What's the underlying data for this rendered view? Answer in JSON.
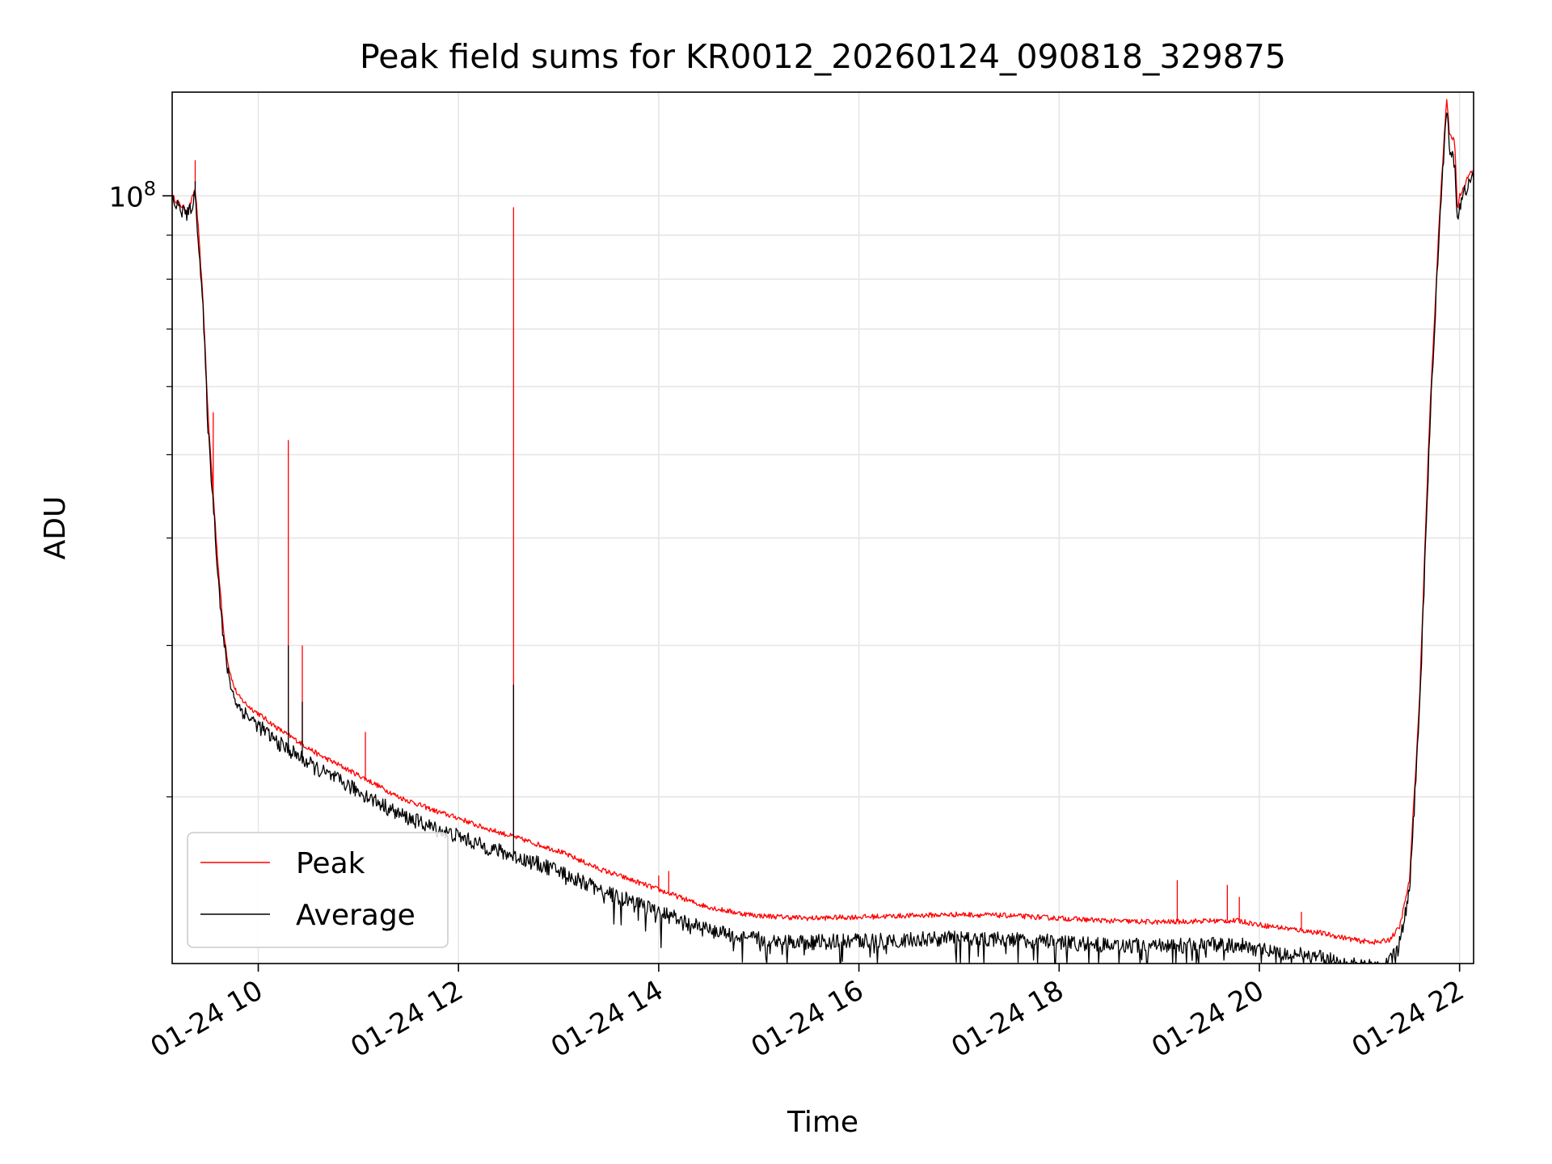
{
  "chart_data": {
    "type": "line",
    "title": "Peak field sums for KR0012_20260124_090818_329875",
    "xlabel": "Time",
    "ylabel": "ADU",
    "yscale": "log",
    "x_unit": "hours (2026-01-24)",
    "xlim": [
      9.14,
      22.14
    ],
    "ylim": [
      12800000.0,
      132000000.0
    ],
    "x_ticks": [
      10,
      12,
      14,
      16,
      18,
      20,
      22
    ],
    "x_tick_labels": [
      "01-24 10",
      "01-24 12",
      "01-24 14",
      "01-24 16",
      "01-24 18",
      "01-24 20",
      "01-24 22"
    ],
    "y_major_ticks": [
      100000000
    ],
    "y_major_tick_base": "10",
    "y_major_tick_exp": "8",
    "y_minor_ticks": [
      20000000,
      30000000,
      40000000,
      50000000,
      60000000,
      70000000,
      80000000,
      90000000
    ],
    "grid": true,
    "legend": {
      "location": "lower-left",
      "entries": [
        "Peak",
        "Average"
      ]
    },
    "colors": {
      "peak": "#ff0000",
      "average": "#000000",
      "grid": "#e6e6e6"
    },
    "series": [
      {
        "name": "Peak",
        "x": [
          9.14,
          9.2,
          9.3,
          9.37,
          9.4,
          9.45,
          9.5,
          9.55,
          9.6,
          9.65,
          9.7,
          9.75,
          9.8,
          9.9,
          10.0,
          10.2,
          10.4,
          10.6,
          10.8,
          11.0,
          11.2,
          11.4,
          11.6,
          11.8,
          12.0,
          12.2,
          12.4,
          12.6,
          12.8,
          13.0,
          13.2,
          13.4,
          13.6,
          13.8,
          14.0,
          14.2,
          14.4,
          14.6,
          14.8,
          15.0,
          15.5,
          16.0,
          16.5,
          17.0,
          17.5,
          18.0,
          18.5,
          19.0,
          19.5,
          19.8,
          20.0,
          20.4,
          20.6,
          20.8,
          21.0,
          21.2,
          21.3,
          21.4,
          21.5,
          21.6,
          21.7,
          21.8,
          21.87,
          21.9,
          21.95,
          21.98,
          22.0,
          22.05,
          22.1,
          22.14
        ],
        "y": [
          100000000,
          98000000,
          96000000,
          102000000,
          92000000,
          75000000,
          55000000,
          45000000,
          37000000,
          31500000,
          28500000,
          27000000,
          26200000,
          25500000,
          25000000,
          24000000,
          23200000,
          22400000,
          21800000,
          21200000,
          20600000,
          20000000,
          19600000,
          19200000,
          18900000,
          18500000,
          18200000,
          17900000,
          17600000,
          17300000,
          16900000,
          16500000,
          16200000,
          15900000,
          15600000,
          15300000,
          15000000,
          14800000,
          14650000,
          14550000,
          14450000,
          14500000,
          14550000,
          14600000,
          14550000,
          14450000,
          14350000,
          14300000,
          14350000,
          14350000,
          14200000,
          14000000,
          13900000,
          13750000,
          13600000,
          13550000,
          13650000,
          14100000,
          16000000,
          26000000,
          55000000,
          95000000,
          130000000,
          118000000,
          116000000,
          96000000,
          100000000,
          103000000,
          106000000,
          107000000
        ],
        "spikes": [
          [
            9.37,
            110000000
          ],
          [
            9.55,
            56000000
          ],
          [
            10.3,
            52000000
          ],
          [
            10.44,
            30000000
          ],
          [
            11.07,
            23800000
          ],
          [
            12.55,
            97000000
          ],
          [
            14.0,
            16200000
          ],
          [
            14.1,
            16400000
          ],
          [
            19.18,
            16000000
          ],
          [
            19.68,
            15800000
          ],
          [
            19.8,
            15300000
          ],
          [
            20.42,
            14700000
          ]
        ]
      },
      {
        "name": "Average",
        "x": [
          9.14,
          9.2,
          9.3,
          9.37,
          9.4,
          9.45,
          9.5,
          9.55,
          9.6,
          9.65,
          9.7,
          9.75,
          9.8,
          9.9,
          10.0,
          10.2,
          10.4,
          10.6,
          10.8,
          11.0,
          11.2,
          11.4,
          11.6,
          11.8,
          12.0,
          12.2,
          12.4,
          12.6,
          12.8,
          13.0,
          13.2,
          13.4,
          13.6,
          13.8,
          14.0,
          14.2,
          14.4,
          14.6,
          14.8,
          15.0,
          15.5,
          16.0,
          16.5,
          17.0,
          17.5,
          18.0,
          18.5,
          19.0,
          19.5,
          19.8,
          20.0,
          20.4,
          20.6,
          20.8,
          21.0,
          21.2,
          21.3,
          21.4,
          21.5,
          21.6,
          21.7,
          21.8,
          21.87,
          21.9,
          21.95,
          21.98,
          22.0,
          22.05,
          22.1,
          22.14
        ],
        "y": [
          99000000,
          97000000,
          95000000,
          100000000,
          90000000,
          73000000,
          53000000,
          44000000,
          36000000,
          30500000,
          27800000,
          26300000,
          25500000,
          24800000,
          24200000,
          23100000,
          22300000,
          21500000,
          20900000,
          20300000,
          19700000,
          19100000,
          18700000,
          18300000,
          18000000,
          17600000,
          17300000,
          17000000,
          16700000,
          16400000,
          16000000,
          15600000,
          15300000,
          15000000,
          14700000,
          14400000,
          14100000,
          13900000,
          13750000,
          13650000,
          13550000,
          13600000,
          13650000,
          13700000,
          13650000,
          13550000,
          13450000,
          13400000,
          13450000,
          13450000,
          13300000,
          13100000,
          13000000,
          12850000,
          12700000,
          12700000,
          12850000,
          13500000,
          15500000,
          25000000,
          53000000,
          93000000,
          128000000,
          112000000,
          110000000,
          93000000,
          97000000,
          101000000,
          104000000,
          105000000
        ],
        "spikes": [
          [
            9.37,
            104000000
          ],
          [
            10.3,
            30000000
          ],
          [
            10.44,
            25800000
          ],
          [
            12.55,
            27000000
          ]
        ]
      }
    ]
  }
}
